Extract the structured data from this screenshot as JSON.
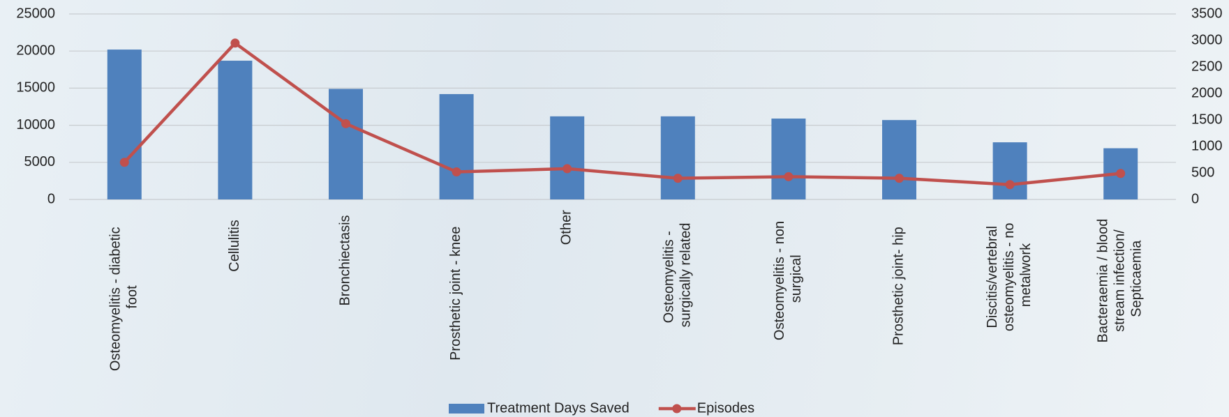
{
  "chart_data": {
    "type": "bar_line",
    "categories": [
      "Osteomyelitis - diabetic foot",
      "Cellulitis",
      "Bronchiectasis",
      "Prosthetic joint - knee",
      "Other",
      "Osteomyelitis - surgically related",
      "Osteomyelitis - non surgical",
      "Prosthetic joint- hip",
      "Discitis/vertebral osteomyelitis - no metalwork",
      "Bacteraemia / blood stream infection/ Septicaemia"
    ],
    "series": [
      {
        "name": "Treatment Days Saved",
        "color": "#4f81bd",
        "type": "bar",
        "values": [
          20200,
          18700,
          14900,
          14200,
          11200,
          11200,
          10900,
          10700,
          7700,
          6900
        ]
      },
      {
        "name": "Episodes",
        "color": "#c0504d",
        "type": "line",
        "axis": "y2",
        "values": [
          700,
          2950,
          1430,
          520,
          580,
          400,
          430,
          400,
          280,
          490
        ]
      }
    ],
    "ylim": [
      0,
      25000
    ],
    "yticks": [
      0,
      5000,
      10000,
      15000,
      20000,
      25000
    ],
    "y2lim": [
      0,
      3500
    ],
    "y2ticks": [
      0,
      500,
      1000,
      1500,
      2000,
      2500,
      3000,
      3500
    ],
    "grid": true,
    "legend": "bottom"
  }
}
